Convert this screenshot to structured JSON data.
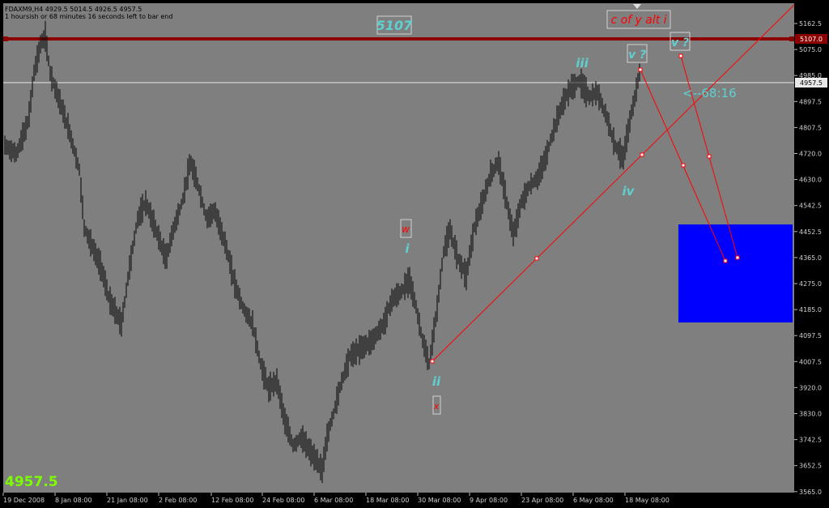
{
  "window": {
    "symbol_line": "FDAXM9,H4  4929.5 5014.5 4926.5 4957.5",
    "countdown_line": "1 hoursish or 68 minutes 16 seconds left to bar end"
  },
  "current_price_big": "4957.5",
  "colors": {
    "background": "#7f7f7f",
    "candles": "#000000",
    "resistance_line": "#8b0000",
    "trend_lines": "#ff0000",
    "target_box": "#0000ff",
    "wave_labels": "#5fd0d0",
    "current_price_line": "#e8e8e8",
    "big_price": "#7cfc00"
  },
  "price_axis": {
    "ticks": [
      "5162.5",
      "5075.0",
      "4985.0",
      "4897.5",
      "4807.5",
      "4720.0",
      "4630.0",
      "4542.5",
      "4452.5",
      "4365.0",
      "4275.0",
      "4185.0",
      "4097.5",
      "4007.5",
      "3920.0",
      "3830.0",
      "3742.5",
      "3652.5",
      "3565.0"
    ],
    "resistance_tag": "5107.0",
    "current_tag": "4957.5"
  },
  "time_axis": {
    "ticks": [
      "19 Dec 2008",
      "8 Jan 08:00",
      "21 Jan 08:00",
      "2 Feb 08:00",
      "12 Feb 08:00",
      "24 Feb 08:00",
      "6 Mar 08:00",
      "18 Mar 08:00",
      "30 Mar 08:00",
      "9 Apr 08:00",
      "23 Apr 08:00",
      "6 May 08:00",
      "18 May 08:00"
    ]
  },
  "annotations": {
    "resistance_label": "5107",
    "wave_i": "i",
    "wave_ii": "ii",
    "wave_iii": "iii",
    "wave_iv": "iv",
    "wave_v": "v ?",
    "wave_v_alt": "v ?",
    "alt_count": "c of y alt i",
    "marker_w": "w",
    "marker_x": "x",
    "countdown_arrow": "<--68:16"
  },
  "icons": [
    "current-bar-arrow-icon"
  ]
}
